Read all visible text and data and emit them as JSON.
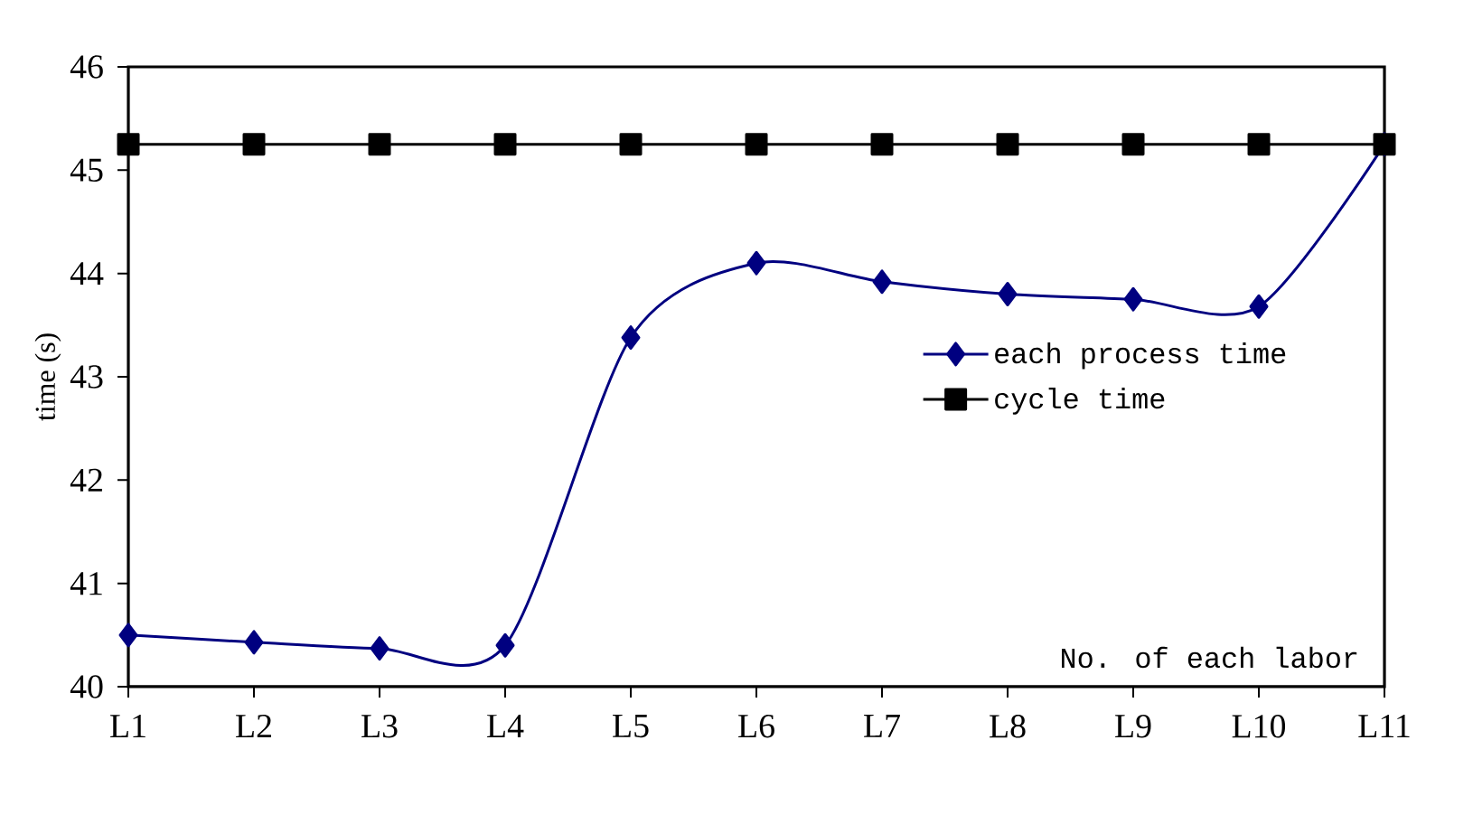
{
  "chart_data": {
    "type": "line",
    "xlabel": "No. of each labor",
    "ylabel": "time (s)",
    "categories": [
      "L1",
      "L2",
      "L3",
      "L4",
      "L5",
      "L6",
      "L7",
      "L8",
      "L9",
      "L10",
      "L11"
    ],
    "series": [
      {
        "name": "each process time",
        "color": "#000080",
        "marker": "diamond",
        "values": [
          40.5,
          40.43,
          40.37,
          40.4,
          43.38,
          44.1,
          43.92,
          43.8,
          43.75,
          43.68,
          45.25
        ]
      },
      {
        "name": "cycle time",
        "color": "#000000",
        "marker": "square",
        "values": [
          45.25,
          45.25,
          45.25,
          45.25,
          45.25,
          45.25,
          45.25,
          45.25,
          45.25,
          45.25,
          45.25
        ]
      }
    ],
    "ylim": [
      40,
      46
    ],
    "yticks": [
      40,
      41,
      42,
      43,
      44,
      45,
      46
    ],
    "grid": false,
    "legend": "right"
  }
}
